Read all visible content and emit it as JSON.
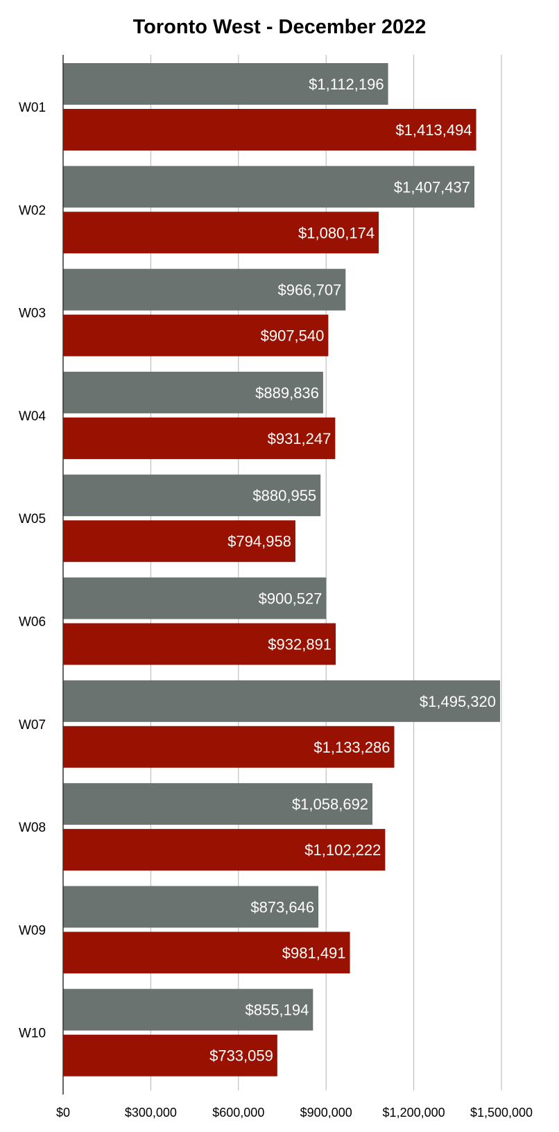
{
  "chart_data": {
    "type": "bar",
    "orientation": "horizontal",
    "title": "Toronto West - December 2022",
    "xlabel": "",
    "ylabel": "",
    "categories": [
      "W01",
      "W02",
      "W03",
      "W04",
      "W05",
      "W06",
      "W07",
      "W08",
      "W09",
      "W10"
    ],
    "series": [
      {
        "color": "#6b7370",
        "values": [
          1112196,
          1407437,
          966707,
          889836,
          880955,
          900527,
          1495320,
          1058692,
          873646,
          855194
        ],
        "labels": [
          "$1,112,196",
          "$1,407,437",
          "$966,707",
          "$889,836",
          "$880,955",
          "$900,527",
          "$1,495,320",
          "$1,058,692",
          "$873,646",
          "$855,194"
        ]
      },
      {
        "color": "#991100",
        "values": [
          1413494,
          1080174,
          907540,
          931247,
          794958,
          932891,
          1133286,
          1102222,
          981491,
          733059
        ],
        "labels": [
          "$1,413,494",
          "$1,080,174",
          "$907,540",
          "$931,247",
          "$794,958",
          "$932,891",
          "$1,133,286",
          "$1,102,222",
          "$981,491",
          "$733,059"
        ]
      }
    ],
    "xlim": [
      0,
      1500000
    ],
    "x_ticks": [
      0,
      300000,
      600000,
      900000,
      1200000,
      1500000
    ],
    "x_tick_labels": [
      "$0",
      "$300,000",
      "$600,000",
      "$900,000",
      "$1,200,000",
      "$1,500,000"
    ],
    "grid": true,
    "legend": "none"
  }
}
